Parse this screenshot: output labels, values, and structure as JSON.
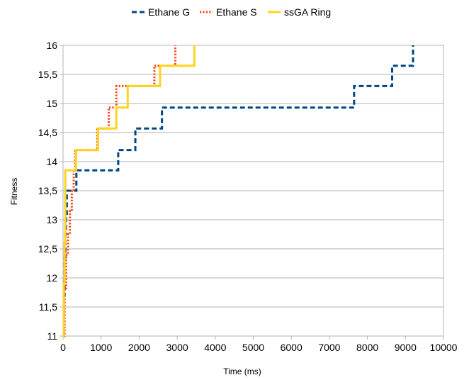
{
  "chart_data": {
    "type": "line",
    "title": "",
    "xlabel": "Time (ms)",
    "ylabel": "Fitness",
    "xlim": [
      0,
      10000
    ],
    "ylim": [
      11,
      16
    ],
    "x_ticks": [
      0,
      1000,
      2000,
      3000,
      4000,
      5000,
      6000,
      7000,
      8000,
      9000,
      10000
    ],
    "x_tick_labels": [
      "0",
      "1000",
      "2000",
      "3000",
      "4000",
      "5000",
      "6000",
      "7000",
      "8000",
      "9000",
      "10000"
    ],
    "y_ticks": [
      11,
      11.5,
      12,
      12.5,
      13,
      13.5,
      14,
      14.5,
      15,
      15.5,
      16
    ],
    "y_tick_labels": [
      "11",
      "11,5",
      "12",
      "12,5",
      "13",
      "13,5",
      "14",
      "14,5",
      "15",
      "15,5",
      "16"
    ],
    "grid": "horizontal",
    "legend": "top",
    "step": true,
    "series": [
      {
        "name": "Ethane G",
        "color": "#004586",
        "dash": "dashed",
        "x": [
          0,
          20,
          40,
          60,
          80,
          100,
          200,
          350,
          1450,
          1900,
          2600,
          7650,
          8650,
          9200
        ],
        "y": [
          11,
          11.7,
          12.35,
          12.75,
          13.1,
          13.5,
          13.5,
          13.85,
          14.2,
          14.57,
          14.93,
          15.3,
          15.65,
          16
        ]
      },
      {
        "name": "Ethane S",
        "color": "#ff420e",
        "dash": "dotted",
        "x": [
          0,
          40,
          80,
          130,
          180,
          230,
          280,
          320,
          900,
          1200,
          1400,
          2400,
          2950
        ],
        "y": [
          11,
          11.8,
          12.4,
          12.75,
          13.15,
          13.5,
          13.85,
          14.2,
          14.57,
          14.93,
          15.3,
          15.65,
          16
        ]
      },
      {
        "name": "ssGA Ring",
        "color": "#ffd320",
        "dash": "solid",
        "x": [
          0,
          20,
          40,
          60,
          340,
          920,
          1400,
          1700,
          2550,
          3450
        ],
        "y": [
          11,
          11.9,
          12.6,
          13.85,
          14.2,
          14.57,
          14.93,
          15.3,
          15.65,
          16
        ]
      }
    ]
  }
}
